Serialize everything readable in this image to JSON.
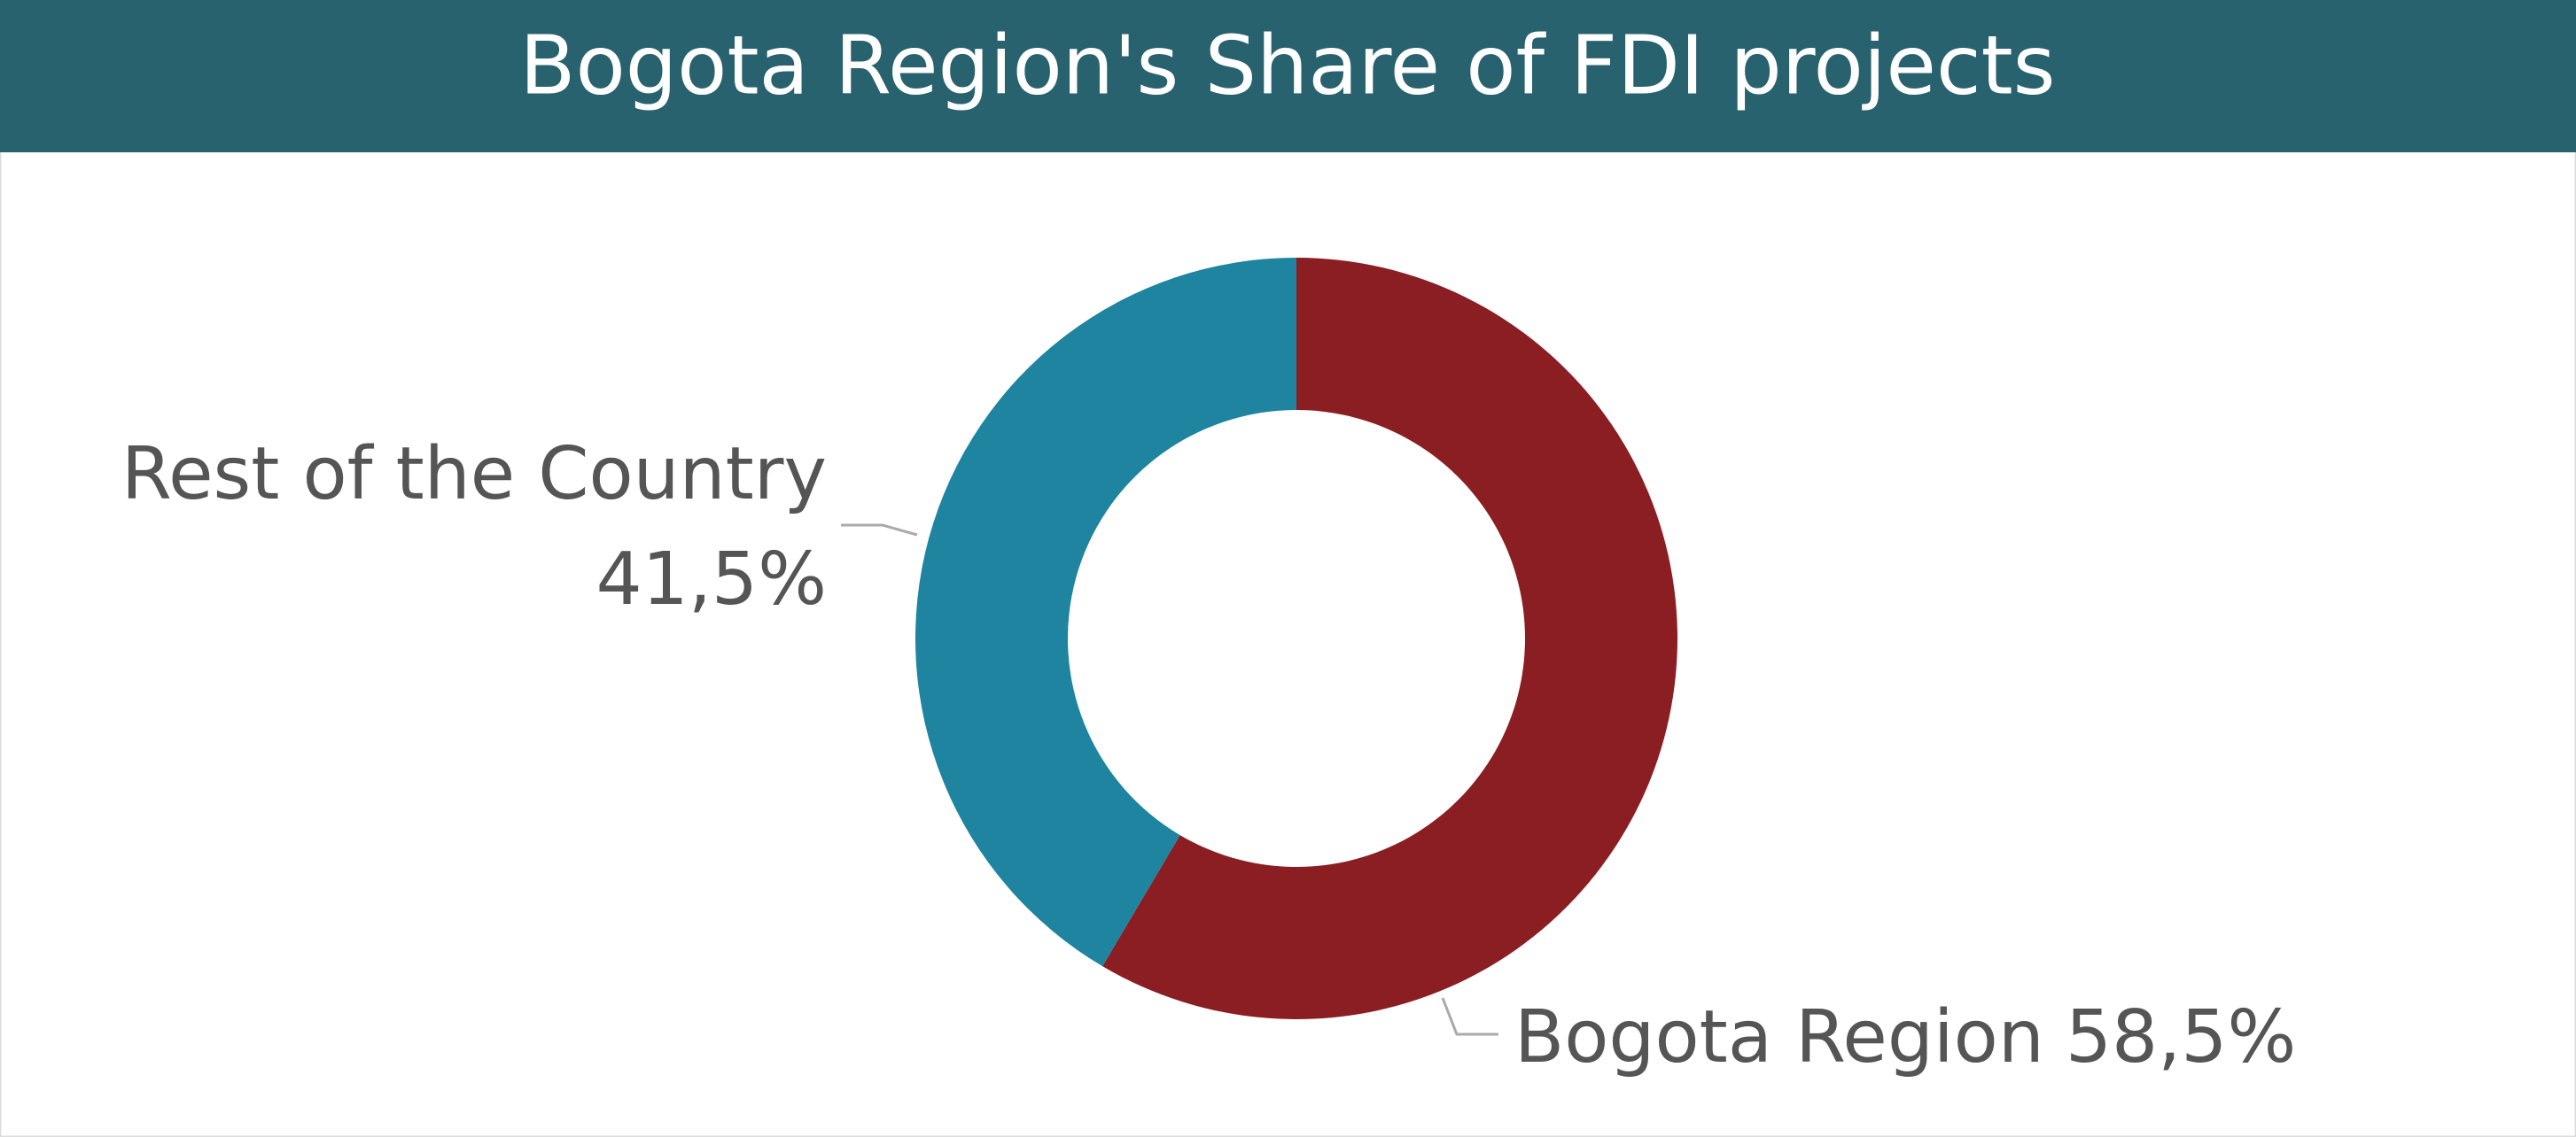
{
  "chart_data": {
    "type": "donut",
    "title": "Bogota Region's Share of FDI projects",
    "categories": [
      "Bogota Region",
      "Rest of the Country"
    ],
    "values": [
      58.5,
      41.5
    ],
    "value_labels": [
      "58,5%",
      "41,5%"
    ],
    "colors": [
      "#8b1e22",
      "#1e84a0"
    ]
  }
}
